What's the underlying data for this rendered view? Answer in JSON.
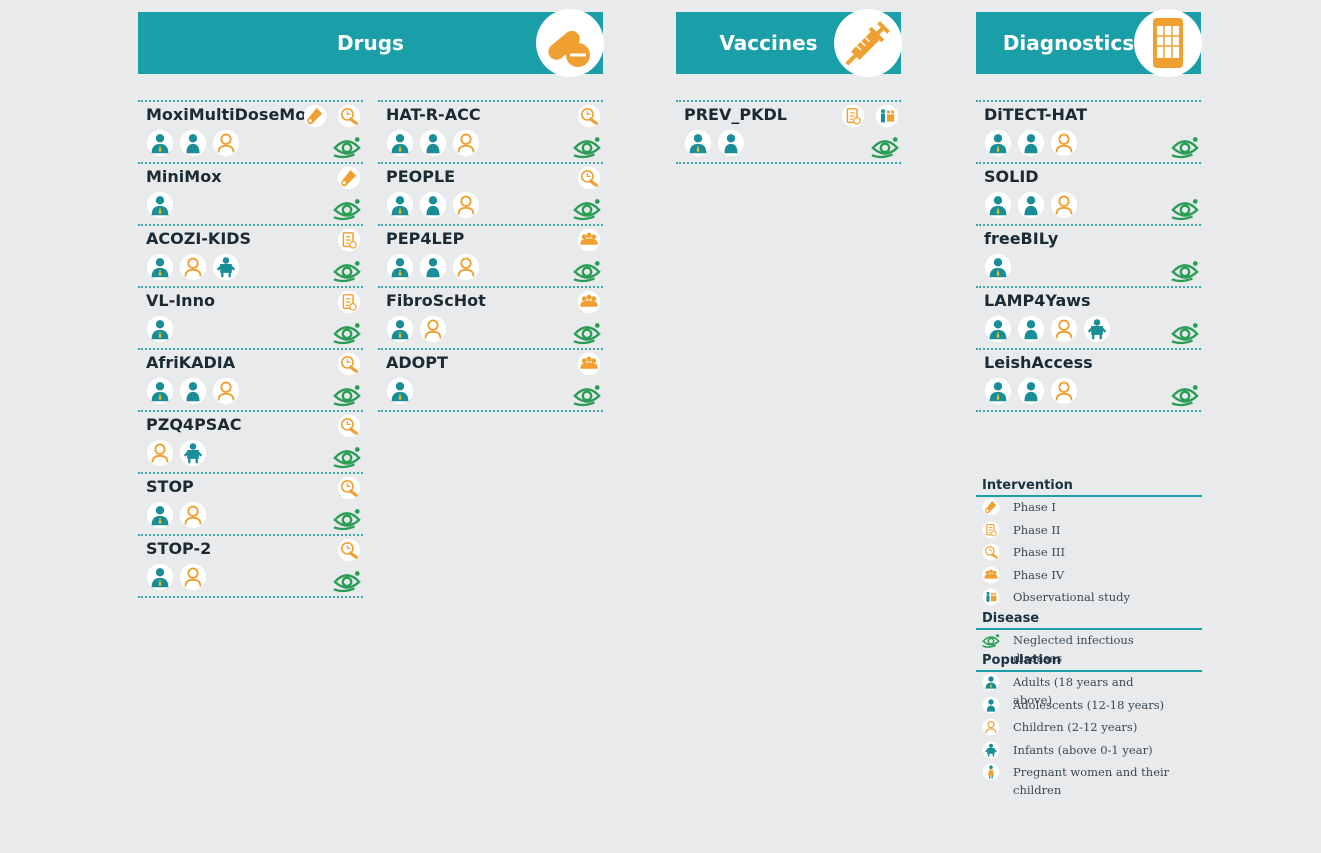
{
  "sections": [
    {
      "title": "Drugs",
      "projects": [
        {
          "name": "MoxiMultiDoseMod"
        },
        {
          "name": "MiniMox"
        },
        {
          "name": "ACOZI-KIDS"
        },
        {
          "name": "VL-Inno"
        },
        {
          "name": "AfriKADIA"
        },
        {
          "name": "PZQ4PSAC"
        },
        {
          "name": "STOP"
        },
        {
          "name": "STOP-2"
        },
        {
          "name": "HAT-R-ACC"
        },
        {
          "name": "PEOPLE"
        },
        {
          "name": "PEP4LEP"
        },
        {
          "name": "FibroScHot"
        },
        {
          "name": "ADOPT"
        }
      ]
    },
    {
      "title": "Vaccines",
      "projects": [
        {
          "name": "PREV_PKDL"
        }
      ]
    },
    {
      "title": "Diagnostics",
      "projects": [
        {
          "name": "DiTECT-HAT"
        },
        {
          "name": "SOLID"
        },
        {
          "name": "freeBILy"
        },
        {
          "name": "LAMP4Yaws"
        },
        {
          "name": "LeishAccess"
        }
      ]
    }
  ],
  "legend": {
    "groups": [
      {
        "title": "Intervention",
        "items": [
          "Phase I",
          "Phase II",
          "Phase III",
          "Phase IV",
          "Observational study"
        ]
      },
      {
        "title": "Disease",
        "items": [
          "Neglected infectious diseases"
        ]
      },
      {
        "title": "Population",
        "items": [
          "Adults (18 years and above)",
          "Adolescents (12-18 years)",
          "Children (2-12 years)",
          "Infants (above 0-1 year)",
          "Pregnant women and their children"
        ]
      }
    ]
  }
}
